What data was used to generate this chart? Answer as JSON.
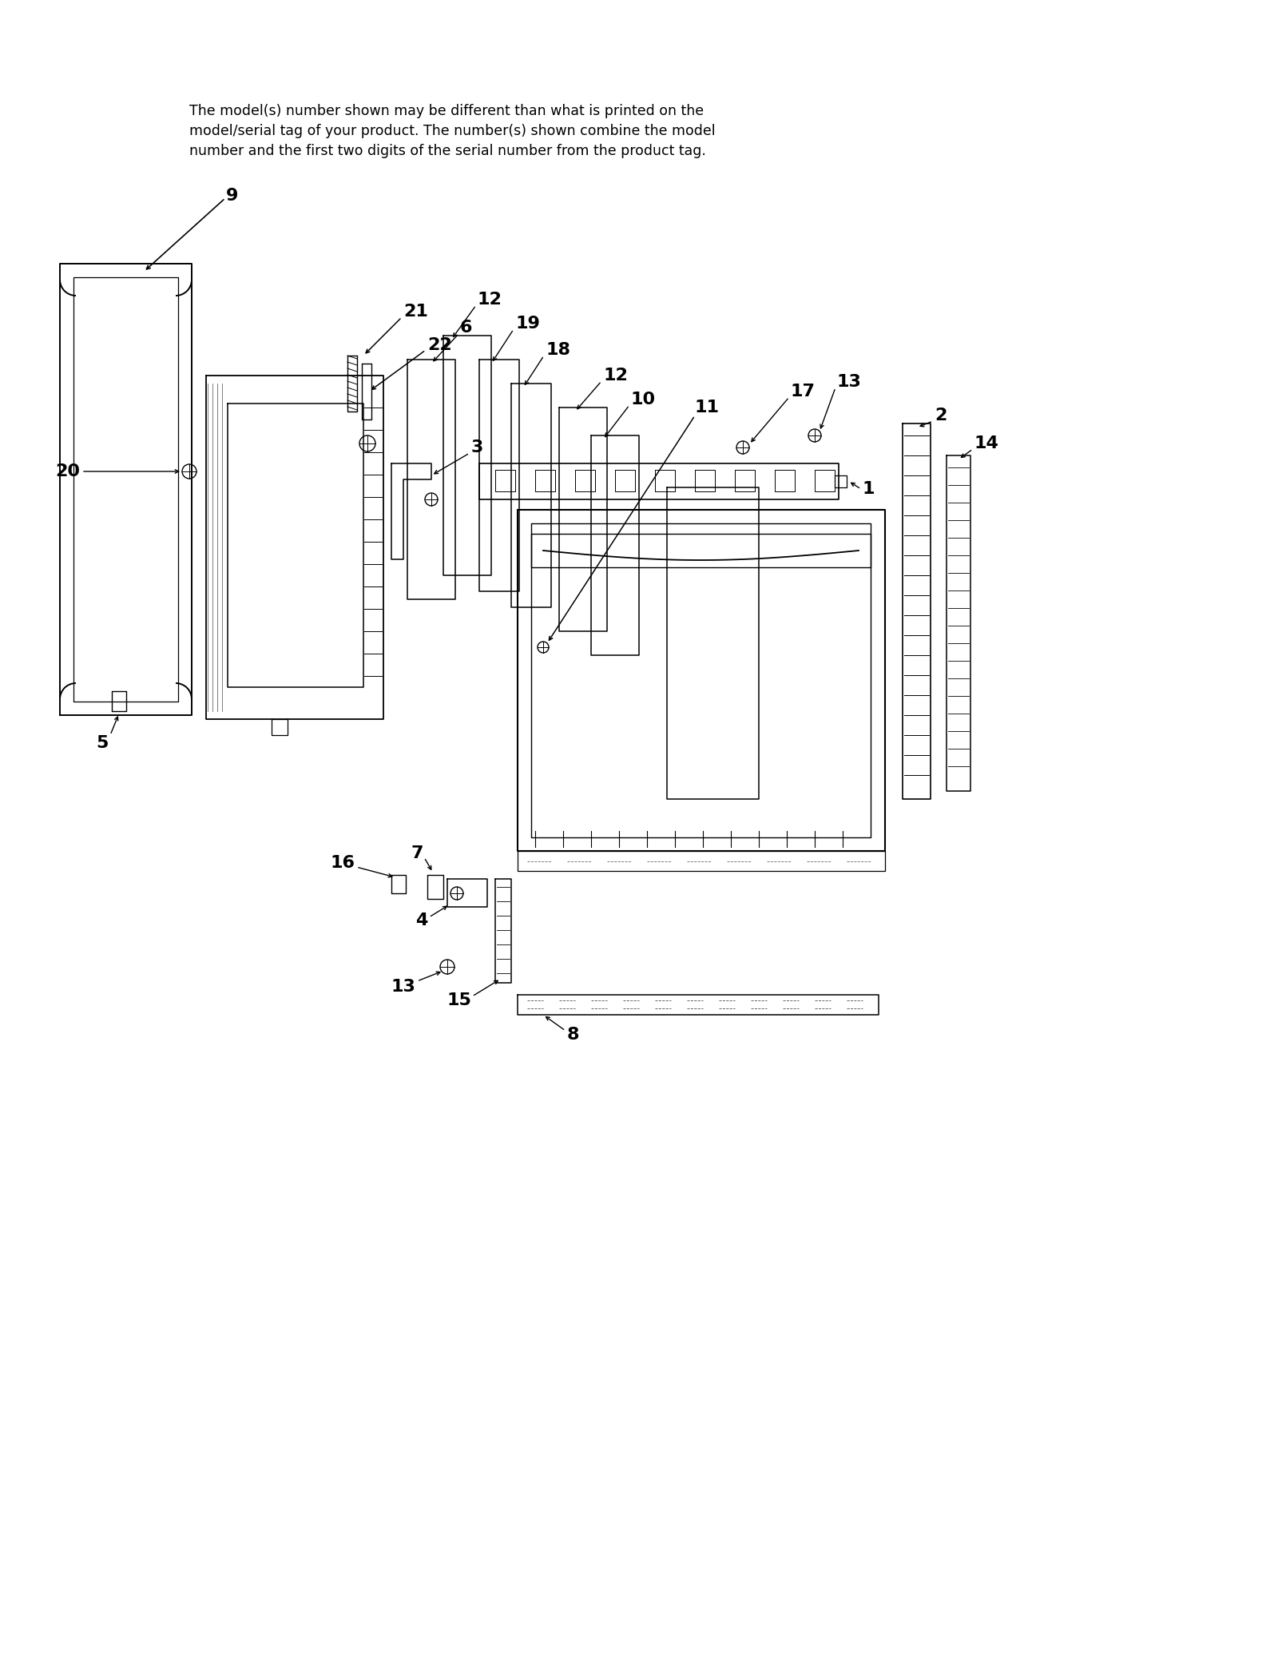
{
  "disclaimer": "The model(s) number shown may be different than what is printed on the\nmodel/serial tag of your product. The number(s) shown combine the model\nnumber and the first two digits of the serial number from the product tag.",
  "background_color": "#ffffff",
  "line_color": "#000000",
  "figsize": [
    16.0,
    20.7
  ],
  "dpi": 100
}
